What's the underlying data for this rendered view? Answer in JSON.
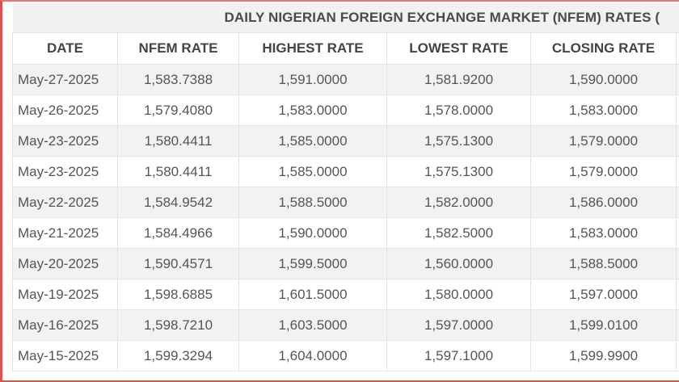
{
  "table": {
    "title": "DAILY NIGERIAN FOREIGN EXCHANGE MARKET (NFEM) RATES (",
    "columns": [
      "DATE",
      "NFEM RATE",
      "HIGHEST RATE",
      "LOWEST RATE",
      "CLOSING RATE"
    ],
    "rows": [
      {
        "date": "May-27-2025",
        "nfem_rate": "1,583.7388",
        "highest_rate": "1,591.0000",
        "lowest_rate": "1,581.9200",
        "closing_rate": "1,590.0000"
      },
      {
        "date": "May-26-2025",
        "nfem_rate": "1,579.4080",
        "highest_rate": "1,583.0000",
        "lowest_rate": "1,578.0000",
        "closing_rate": "1,583.0000"
      },
      {
        "date": "May-23-2025",
        "nfem_rate": "1,580.4411",
        "highest_rate": "1,585.0000",
        "lowest_rate": "1,575.1300",
        "closing_rate": "1,579.0000"
      },
      {
        "date": "May-23-2025",
        "nfem_rate": "1,580.4411",
        "highest_rate": "1,585.0000",
        "lowest_rate": "1,575.1300",
        "closing_rate": "1,579.0000"
      },
      {
        "date": "May-22-2025",
        "nfem_rate": "1,584.9542",
        "highest_rate": "1,588.5000",
        "lowest_rate": "1,582.0000",
        "closing_rate": "1,586.0000"
      },
      {
        "date": "May-21-2025",
        "nfem_rate": "1,584.4966",
        "highest_rate": "1,590.0000",
        "lowest_rate": "1,582.5000",
        "closing_rate": "1,583.0000"
      },
      {
        "date": "May-20-2025",
        "nfem_rate": "1,590.4571",
        "highest_rate": "1,599.5000",
        "lowest_rate": "1,560.0000",
        "closing_rate": "1,588.5000"
      },
      {
        "date": "May-19-2025",
        "nfem_rate": "1,598.6885",
        "highest_rate": "1,601.5000",
        "lowest_rate": "1,580.0000",
        "closing_rate": "1,597.0000"
      },
      {
        "date": "May-16-2025",
        "nfem_rate": "1,598.7210",
        "highest_rate": "1,603.5000",
        "lowest_rate": "1,597.0000",
        "closing_rate": "1,599.0100"
      },
      {
        "date": "May-15-2025",
        "nfem_rate": "1,599.3294",
        "highest_rate": "1,604.0000",
        "lowest_rate": "1,597.1000",
        "closing_rate": "1,599.9900"
      }
    ]
  },
  "colors": {
    "frame_border": "#d9534f",
    "title_bg": "#f1f1f1",
    "stripe_bg": "#f2f2f2",
    "text": "#555555",
    "header_text": "#444444"
  }
}
